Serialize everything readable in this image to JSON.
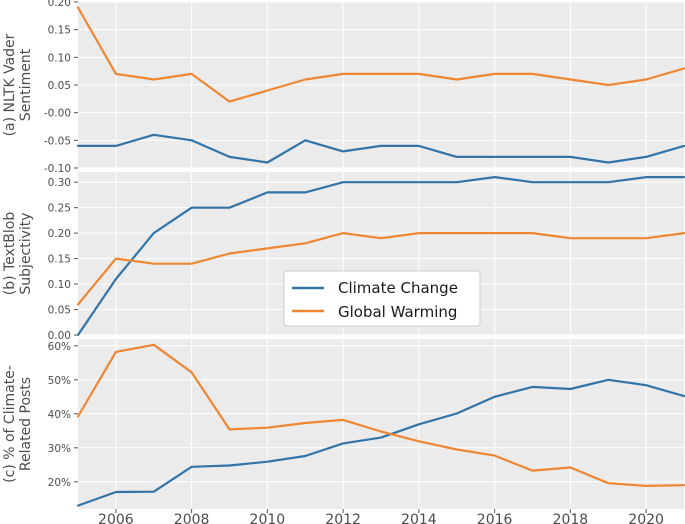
{
  "chart_data": {
    "type": "line",
    "x": [
      2005,
      2006,
      2007,
      2008,
      2009,
      2010,
      2011,
      2012,
      2013,
      2014,
      2015,
      2016,
      2017,
      2018,
      2019,
      2020,
      2021
    ],
    "xticks": [
      "2006",
      "2008",
      "2010",
      "2012",
      "2014",
      "2016",
      "2018",
      "2020"
    ],
    "xlim": [
      2005,
      2021
    ],
    "colors": {
      "Climate Change": "#3274a8",
      "Global Warming": "#ef8632"
    },
    "legend": {
      "entries": [
        "Climate Change",
        "Global Warming"
      ],
      "placement": "center (middle panel)"
    },
    "grid": true,
    "panels": [
      {
        "ylabel": [
          "(a) NLTK Vader",
          "Sentiment"
        ],
        "ylim": [
          -0.1,
          0.2
        ],
        "yticks": [
          -0.1,
          -0.05,
          0.0,
          0.05,
          0.1,
          0.15,
          0.2
        ],
        "ytick_labels": [
          "-0.10",
          "-0.05",
          "-0.00",
          "0.05",
          "0.10",
          "0.15",
          "0.20"
        ],
        "series": [
          {
            "name": "Climate Change",
            "values": [
              -0.06,
              -0.06,
              -0.04,
              -0.05,
              -0.08,
              -0.09,
              -0.05,
              -0.07,
              -0.06,
              -0.06,
              -0.08,
              -0.08,
              -0.08,
              -0.08,
              -0.09,
              -0.08,
              -0.06
            ]
          },
          {
            "name": "Global Warming",
            "values": [
              0.19,
              0.07,
              0.06,
              0.07,
              0.02,
              0.04,
              0.06,
              0.07,
              0.07,
              0.07,
              0.06,
              0.07,
              0.07,
              0.06,
              0.05,
              0.06,
              0.08
            ]
          }
        ]
      },
      {
        "ylabel": [
          "(b) TextBlob",
          "Subjectivity"
        ],
        "ylim": [
          0.0,
          0.32
        ],
        "yticks": [
          0.0,
          0.05,
          0.1,
          0.15,
          0.2,
          0.25,
          0.3
        ],
        "ytick_labels": [
          "0.00",
          "0.05",
          "0.10",
          "0.15",
          "0.20",
          "0.25",
          "0.30"
        ],
        "series": [
          {
            "name": "Climate Change",
            "values": [
              0.0,
              0.11,
              0.2,
              0.25,
              0.25,
              0.28,
              0.28,
              0.3,
              0.3,
              0.3,
              0.3,
              0.31,
              0.3,
              0.3,
              0.3,
              0.31,
              0.31
            ]
          },
          {
            "name": "Global Warming",
            "values": [
              0.06,
              0.15,
              0.14,
              0.14,
              0.16,
              0.17,
              0.18,
              0.2,
              0.19,
              0.2,
              0.2,
              0.2,
              0.2,
              0.19,
              0.19,
              0.19,
              0.2
            ]
          }
        ]
      },
      {
        "ylabel": [
          "(c) % of Climate-",
          "Related Posts"
        ],
        "ylim": [
          12,
          62
        ],
        "yticks": [
          20,
          30,
          40,
          50,
          60
        ],
        "ytick_labels": [
          "20%",
          "30%",
          "40%",
          "50%",
          "60%"
        ],
        "series": [
          {
            "name": "Climate Change",
            "values": [
              13,
              17,
              17.1,
              24.4,
              24.8,
              25.9,
              27.6,
              31.3,
              33,
              36.9,
              40.1,
              45,
              47.9,
              47.3,
              50,
              48.4,
              45.2
            ]
          },
          {
            "name": "Global Warming",
            "values": [
              39.2,
              58.2,
              60.3,
              52.2,
              35.4,
              35.9,
              37.3,
              38.2,
              34.8,
              31.9,
              29.5,
              27.7,
              23.3,
              24.2,
              19.6,
              18.8,
              19
            ]
          }
        ]
      }
    ]
  }
}
